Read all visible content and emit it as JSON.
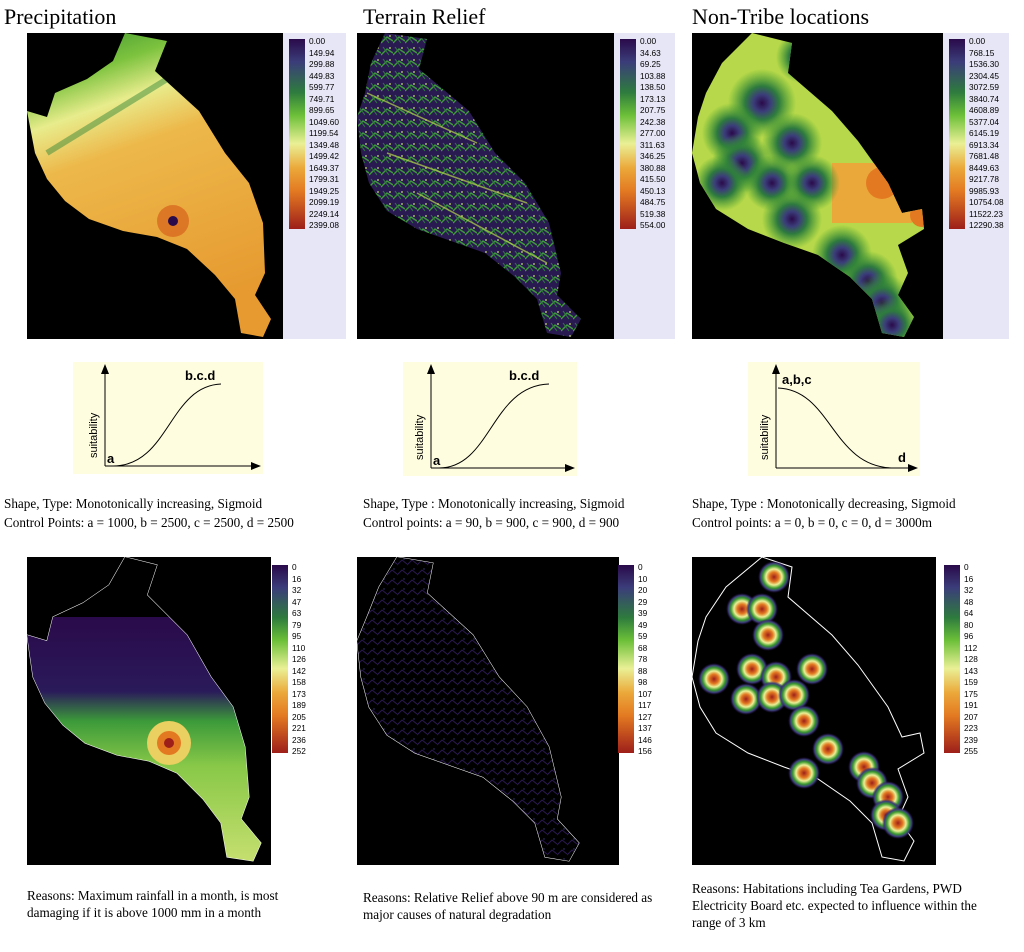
{
  "columns": [
    {
      "title": "Precipitation",
      "input_legend": [
        "0.00",
        "149.94",
        "299.88",
        "449.83",
        "599.77",
        "749.71",
        "899.65",
        "1049.60",
        "1199.54",
        "1349.48",
        "1499.42",
        "1649.37",
        "1799.31",
        "1949.25",
        "2099.19",
        "2249.14",
        "2399.08"
      ],
      "curve": {
        "direction": "increasing",
        "top_label": "b.c.d",
        "bottom_label": "a",
        "ylabel": "suitability"
      },
      "shape_line": "Shape, Type: Monotonically increasing, Sigmoid",
      "control_line": "Control Points: a = 1000, b = 2500, c = 2500, d = 2500",
      "output_legend": [
        "0",
        "16",
        "32",
        "47",
        "63",
        "79",
        "95",
        "110",
        "126",
        "142",
        "158",
        "173",
        "189",
        "205",
        "221",
        "236",
        "252"
      ],
      "reason": "Reasons: Maximum rainfall in a month, is most damaging if it is above 1000 mm in a month"
    },
    {
      "title": "Terrain Relief",
      "input_legend": [
        "0.00",
        "34.63",
        "69.25",
        "103.88",
        "138.50",
        "173.13",
        "207.75",
        "242.38",
        "277.00",
        "311.63",
        "346.25",
        "380.88",
        "415.50",
        "450.13",
        "484.75",
        "519.38",
        "554.00"
      ],
      "curve": {
        "direction": "increasing",
        "top_label": "b.c.d",
        "bottom_label": "a",
        "ylabel": "suitability"
      },
      "shape_line": "Shape, Type : Monotonically increasing, Sigmoid",
      "control_line": "Control points: a = 90, b = 900, c = 900,  d = 900",
      "output_legend": [
        "0",
        "10",
        "20",
        "29",
        "39",
        "49",
        "59",
        "68",
        "78",
        "88",
        "98",
        "107",
        "117",
        "127",
        "137",
        "146",
        "156"
      ],
      "reason": "Reasons: Relative Relief above 90 m are considered as major causes of natural degradation"
    },
    {
      "title": "Non-Tribe locations",
      "input_legend": [
        "0.00",
        "768.15",
        "1536.30",
        "2304.45",
        "3072.59",
        "3840.74",
        "4608.89",
        "5377.04",
        "6145.19",
        "6913.34",
        "7681.48",
        "8449.63",
        "9217.78",
        "9985.93",
        "10754.08",
        "11522.23",
        "12290.38"
      ],
      "curve": {
        "direction": "decreasing",
        "top_label": "a,b,c",
        "bottom_label": "d",
        "ylabel": "suitability"
      },
      "shape_line": "Shape, Type : Monotonically decreasing, Sigmoid",
      "control_line": "Control points: a = 0, b = 0, c = 0,  d = 3000m",
      "output_legend": [
        "0",
        "16",
        "32",
        "48",
        "64",
        "80",
        "96",
        "112",
        "128",
        "143",
        "159",
        "175",
        "191",
        "207",
        "223",
        "239",
        "255"
      ],
      "reason": "Reasons: Habitations including Tea Gardens, PWD Electricity Board etc. expected to influence within the range of 3 km"
    }
  ],
  "colors": {
    "ramp": [
      "#2a0a4a",
      "#3b3d7a",
      "#34656b",
      "#2e7b3e",
      "#3a9a2e",
      "#6bbf38",
      "#b3db5a",
      "#eaf096",
      "#efcf5e",
      "#eba83a",
      "#e37a22",
      "#cc4a1a",
      "#9e1f1a"
    ],
    "panel_bg": "#000000",
    "legend_bg": "#e6e6f6",
    "curve_bg": "#fffde0"
  }
}
